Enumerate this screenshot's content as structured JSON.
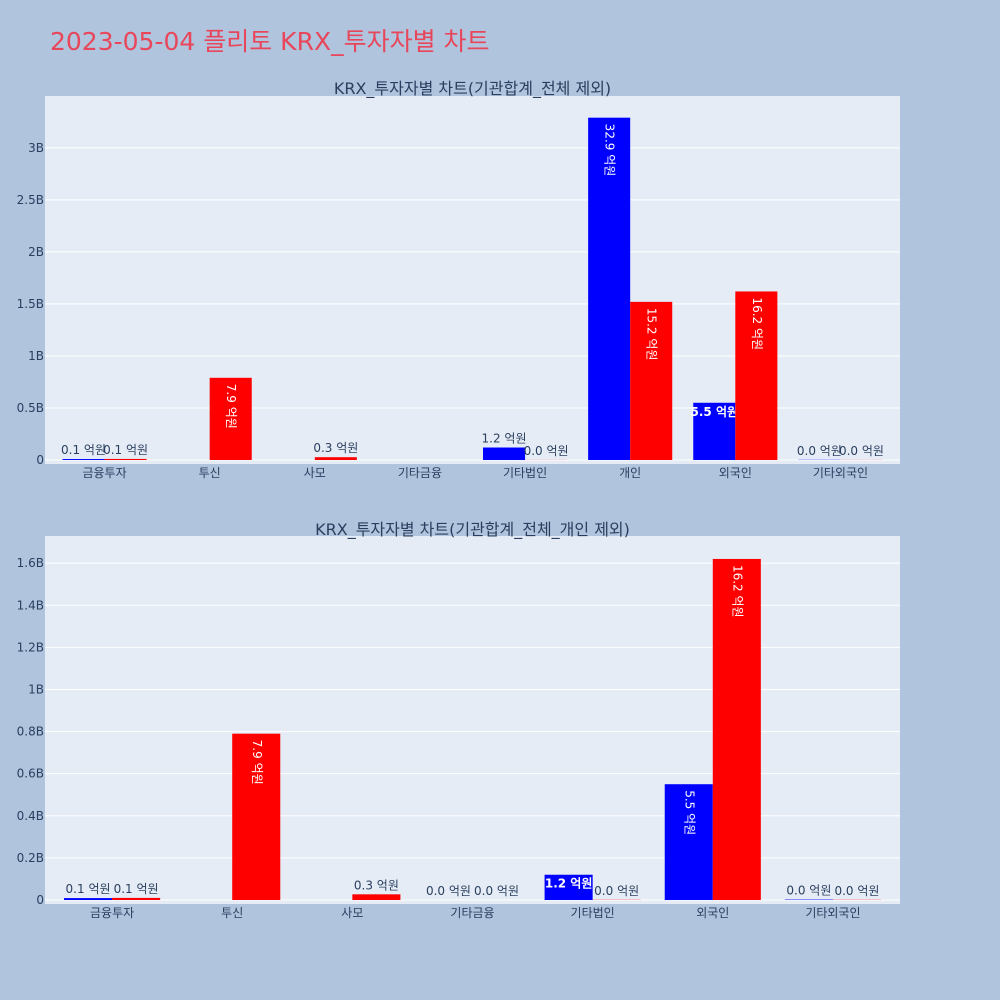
{
  "title": "2023-05-04 플리토 KRX_투자자별 차트",
  "colors": {
    "buy": "#0000ff",
    "sell": "#ff0000",
    "plot_bg": "#e5ecf6",
    "page_bg": "#b0c4de",
    "title": "#e8465a"
  },
  "chart_data": [
    {
      "type": "bar",
      "title": "KRX_투자자별 차트(기관합계_전체 제외)",
      "categories": [
        "금융투자",
        "투신",
        "사모",
        "기타금융",
        "기타법인",
        "개인",
        "외국인",
        "기타외국인"
      ],
      "series": [
        {
          "values": [
            9000000,
            0,
            0,
            0,
            120000000,
            3290000000,
            550000000,
            2000000
          ],
          "labels": [
            "0.1 억원",
            "",
            "",
            "",
            "1.2 억원",
            "32.9 억원",
            "5.5 억원",
            "0.0 억원"
          ]
        },
        {
          "values": [
            10000000,
            790000000,
            27000000,
            0,
            1000000,
            1520000000,
            1620000000,
            1000000
          ],
          "labels": [
            "0.1 억원",
            "7.9 억원",
            "0.3 억원",
            "",
            "0.0 억원",
            "15.2 억원",
            "16.2 억원",
            "0.0 억원"
          ]
        }
      ],
      "yticks": [
        0,
        500000000,
        1000000000,
        1500000000,
        2000000000,
        2500000000,
        3000000000
      ],
      "ytick_labels": [
        "0",
        "0.5B",
        "1B",
        "1.5B",
        "2B",
        "2.5B",
        "3B"
      ],
      "ylim": [
        0,
        3460000000
      ],
      "grid": true
    },
    {
      "type": "bar",
      "title": "KRX_투자자별 차트(기관합계_전체_개인 제외)",
      "categories": [
        "금융투자",
        "투신",
        "사모",
        "기타금융",
        "기타법인",
        "외국인",
        "기타외국인"
      ],
      "series": [
        {
          "values": [
            9000000,
            0,
            0,
            0,
            120000000,
            550000000,
            2000000
          ],
          "labels": [
            "0.1 억원",
            "",
            "",
            "0.0 억원",
            "1.2 억원",
            "5.5 억원",
            "0.0 억원"
          ]
        },
        {
          "values": [
            10000000,
            790000000,
            27000000,
            0,
            1000000,
            1620000000,
            1000000
          ],
          "labels": [
            "0.1 억원",
            "7.9 억원",
            "0.3 억원",
            "0.0 억원",
            "0.0 억원",
            "16.2 억원",
            "0.0 억원"
          ]
        }
      ],
      "yticks": [
        0,
        200000000,
        400000000,
        600000000,
        800000000,
        1000000000,
        1200000000,
        1400000000,
        1600000000
      ],
      "ytick_labels": [
        "0",
        "0.2B",
        "0.4B",
        "0.6B",
        "0.8B",
        "1B",
        "1.2B",
        "1.4B",
        "1.6B"
      ],
      "ylim": [
        0,
        1710000000
      ],
      "grid": true
    }
  ]
}
